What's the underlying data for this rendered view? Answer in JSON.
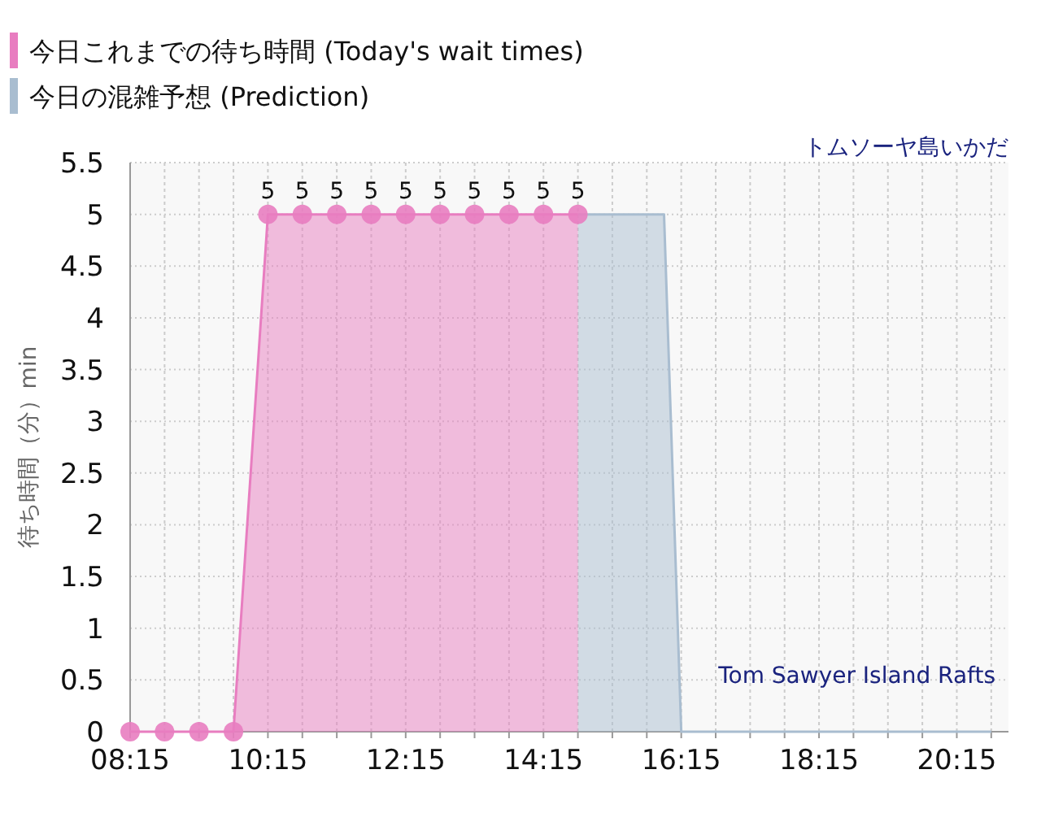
{
  "chart_data": {
    "type": "area",
    "title": "トムソーヤ島いかだ",
    "ylabel": "待ち時間（分）min",
    "annotations": [
      "Tom Sawyer Island Rafts"
    ],
    "xlim": [
      8.25,
      21
    ],
    "ylim": [
      0,
      5.5
    ],
    "xticks": [
      {
        "value": 8.25,
        "label": "08:15"
      },
      {
        "value": 8.75,
        "label": null
      },
      {
        "value": 9.25,
        "label": null
      },
      {
        "value": 9.75,
        "label": null
      },
      {
        "value": 10.25,
        "label": "10:15"
      },
      {
        "value": 10.75,
        "label": null
      },
      {
        "value": 11.25,
        "label": null
      },
      {
        "value": 11.75,
        "label": null
      },
      {
        "value": 12.25,
        "label": "12:15"
      },
      {
        "value": 12.75,
        "label": null
      },
      {
        "value": 13.25,
        "label": null
      },
      {
        "value": 13.75,
        "label": null
      },
      {
        "value": 14.25,
        "label": "14:15"
      },
      {
        "value": 14.75,
        "label": null
      },
      {
        "value": 15.25,
        "label": null
      },
      {
        "value": 15.75,
        "label": null
      },
      {
        "value": 16.25,
        "label": "16:15"
      },
      {
        "value": 16.75,
        "label": null
      },
      {
        "value": 17.25,
        "label": null
      },
      {
        "value": 17.75,
        "label": null
      },
      {
        "value": 18.25,
        "label": "18:15"
      },
      {
        "value": 18.75,
        "label": null
      },
      {
        "value": 19.25,
        "label": null
      },
      {
        "value": 19.75,
        "label": null
      },
      {
        "value": 20.25,
        "label": "20:15"
      },
      {
        "value": 20.75,
        "label": null
      }
    ],
    "yticks": [
      0,
      0.5,
      1,
      1.5,
      2,
      2.5,
      3,
      3.5,
      4,
      4.5,
      5,
      5.5
    ],
    "grid": true,
    "legend": "top left",
    "marker": "circle",
    "series": [
      {
        "name": "今日の混雑予想 (Prediction)",
        "color": "#a9bdd0",
        "marker": "none",
        "x": [
          14.75,
          15.25,
          15.75,
          16.0,
          16.25,
          16.75,
          17.25,
          17.75,
          18.25,
          18.75,
          19.25,
          19.75,
          20.25,
          20.75
        ],
        "values": [
          5,
          5,
          5,
          5,
          0,
          0,
          0,
          0,
          0,
          0,
          0,
          0,
          0,
          0
        ]
      },
      {
        "name": "今日これまでの待ち時間 (Today's wait times)",
        "color": "#e87dc0",
        "x": [
          8.25,
          8.75,
          9.25,
          9.75,
          10.25,
          10.75,
          11.25,
          11.75,
          12.25,
          12.75,
          13.25,
          13.75,
          14.25,
          14.75
        ],
        "values": [
          0,
          0,
          0,
          0,
          5,
          5,
          5,
          5,
          5,
          5,
          5,
          5,
          5,
          5
        ],
        "value_labels": [
          null,
          null,
          null,
          null,
          "5",
          "5",
          "5",
          "5",
          "5",
          "5",
          "5",
          "5",
          "5",
          "5"
        ]
      }
    ]
  }
}
